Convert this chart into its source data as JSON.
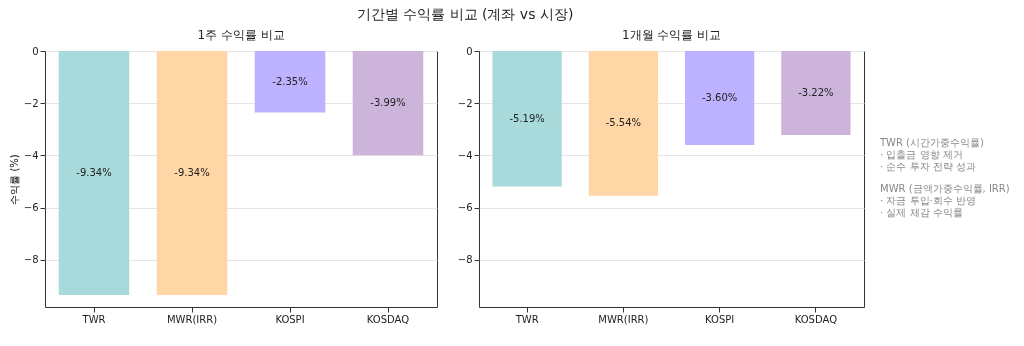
{
  "chart_data": [
    {
      "type": "bar",
      "title": "1주 수익률 비교",
      "ylabel": "수익률 (%)",
      "categories": [
        "TWR",
        "MWR(IRR)",
        "KOSPI",
        "KOSDAQ"
      ],
      "values": [
        -9.34,
        -9.34,
        -2.35,
        -3.99
      ],
      "value_labels": [
        "-9.34%",
        "-9.34%",
        "-2.35%",
        "-3.99%"
      ],
      "colors": [
        "#a8dadc",
        "#ffd6a5",
        "#bdb2ff",
        "#cdb4db"
      ],
      "ylim": [
        -9.8,
        0
      ],
      "yticks": [
        0,
        -2,
        -4,
        -6,
        -8
      ],
      "grid": "y",
      "annotations": [
        "기간별 수익률 비교 (계좌 vs 시장)"
      ]
    },
    {
      "type": "bar",
      "title": "1개월 수익률 비교",
      "categories": [
        "TWR",
        "MWR(IRR)",
        "KOSPI",
        "KOSDAQ"
      ],
      "values": [
        -5.19,
        -5.54,
        -3.6,
        -3.22
      ],
      "value_labels": [
        "-5.19%",
        "-5.54%",
        "-3.60%",
        "-3.22%"
      ],
      "colors": [
        "#a8dadc",
        "#ffd6a5",
        "#bdb2ff",
        "#cdb4db"
      ],
      "ylim": [
        -9.8,
        0
      ],
      "yticks": [
        0,
        -2,
        -4,
        -6,
        -8
      ],
      "grid": "y",
      "annotations": [
        "TWR (시간가중수익률)",
        "· 입출금 영향 제거",
        "· 순수 투자 전략 성과",
        "MWR (금액가중수익률, IRR)",
        "· 자금 투입·회수 반영",
        "· 실제 체감 수익률"
      ]
    }
  ]
}
